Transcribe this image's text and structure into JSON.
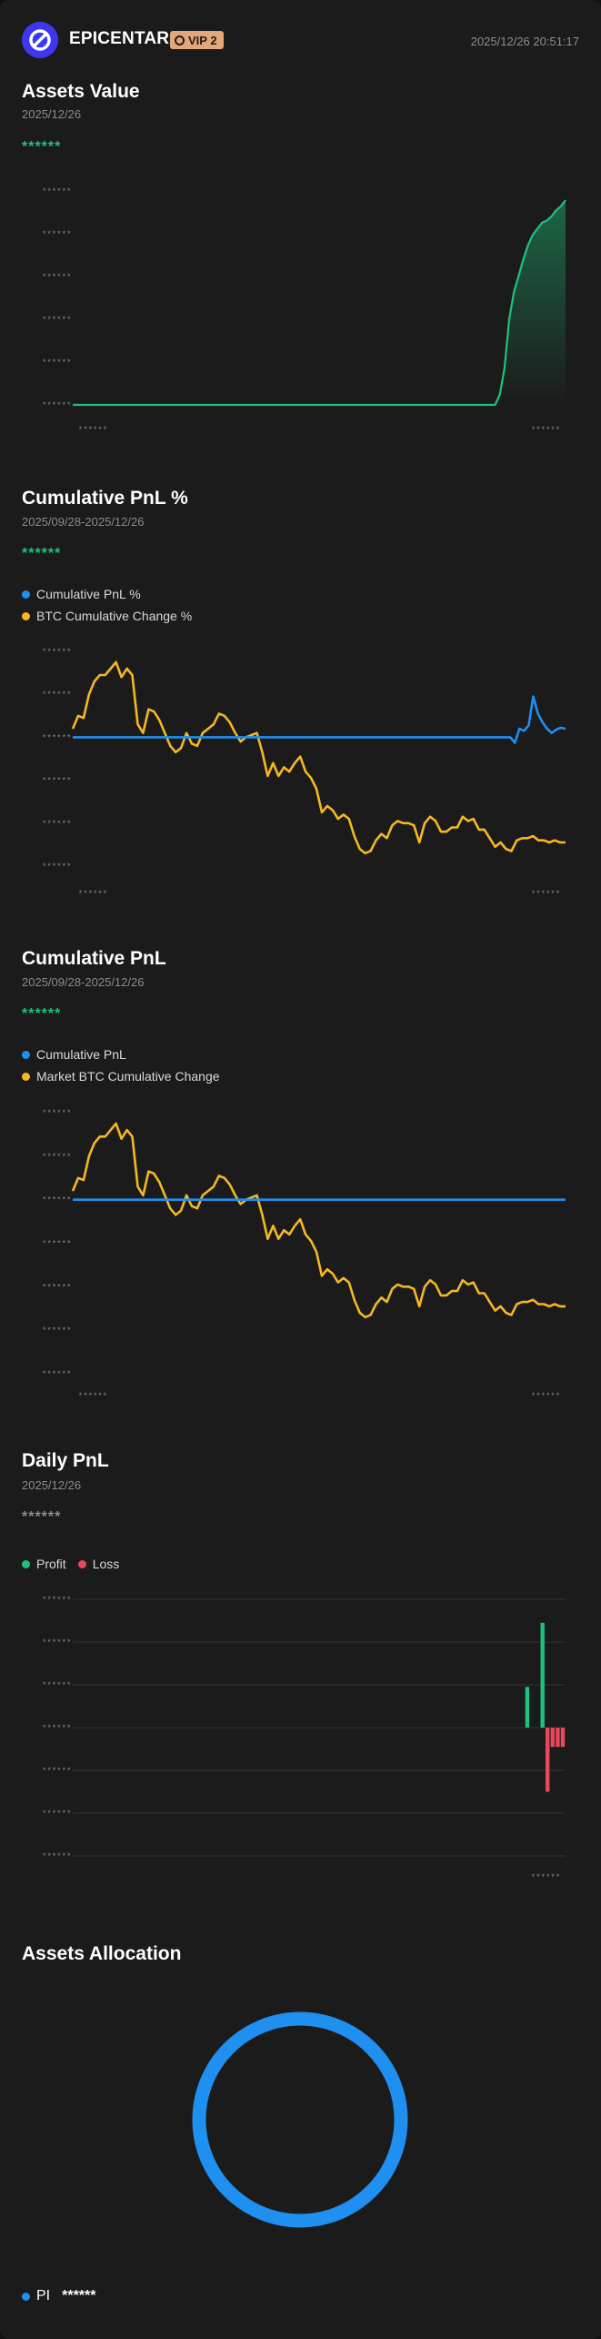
{
  "header": {
    "brand": "EPICENTAR",
    "vip": "VIP 2",
    "timestamp": "2025/12/26 20:51:17",
    "icons": {
      "logo": "no-sign-logo-icon",
      "vip": "vip-badge-icon"
    }
  },
  "colors": {
    "green": "#1fc27a",
    "blue": "#1f8ff0",
    "yellow": "#f5b723",
    "red": "#e8485c",
    "card": "#1b1b1b"
  },
  "assets_value": {
    "title": "Assets Value",
    "date": "2025/12/26",
    "value": "******"
  },
  "cum_pnl_pct": {
    "title": "Cumulative PnL %",
    "range": "2025/09/28-2025/12/26",
    "value": "******",
    "legend": [
      "Cumulative PnL %",
      "BTC Cumulative Change %"
    ]
  },
  "cum_pnl": {
    "title": "Cumulative PnL",
    "range": "2025/09/28-2025/12/26",
    "value": "******",
    "legend": [
      "Cumulative PnL",
      "Market BTC Cumulative Change"
    ]
  },
  "daily_pnl": {
    "title": "Daily PnL",
    "date": "2025/12/26",
    "value": "******",
    "legend": [
      "Profit",
      "Loss"
    ]
  },
  "allocation": {
    "title": "Assets Allocation",
    "items": [
      {
        "label": "PI",
        "value": "******"
      }
    ]
  },
  "mask": "******",
  "chart_data": [
    {
      "type": "area",
      "title": "Assets Value",
      "y_tick_labels": [
        "******",
        "******",
        "******",
        "******",
        "******",
        "******"
      ],
      "x_tick_labels": [
        "******",
        "******"
      ],
      "series": [
        {
          "values": [
            0,
            0,
            0,
            0,
            0,
            0,
            0,
            0,
            0,
            0,
            0,
            0,
            0,
            0,
            0,
            0,
            0,
            0,
            0,
            0,
            0,
            0,
            0,
            0,
            0,
            0,
            0,
            0,
            0,
            0,
            0,
            0,
            0,
            0,
            0,
            0,
            0,
            0,
            0,
            0,
            0,
            0,
            0,
            0,
            0,
            0,
            0,
            0,
            0,
            0,
            0,
            0,
            0,
            0,
            0,
            0,
            0,
            0,
            0,
            0,
            0,
            0,
            0,
            0,
            0,
            0,
            0,
            0,
            0,
            0,
            0,
            0,
            0,
            0,
            0,
            0,
            0,
            0,
            0,
            0,
            0,
            0,
            0,
            0,
            0,
            0,
            0,
            0,
            0,
            0,
            0,
            0.05,
            0.18,
            0.42,
            0.55,
            0.63,
            0.71,
            0.78,
            0.83,
            0.86,
            0.89,
            0.9,
            0.92,
            0.95,
            0.97,
            1.0
          ]
        }
      ],
      "ylim": [
        0,
        1
      ]
    },
    {
      "type": "line",
      "title": "Cumulative PnL %",
      "y_tick_labels": [
        "******",
        "******",
        "******",
        "******",
        "******",
        "******"
      ],
      "x_tick_labels": [
        "******",
        "******"
      ],
      "series": [
        {
          "name": "Cumulative PnL %",
          "values": [
            0,
            0,
            0,
            0,
            0,
            0,
            0,
            0,
            0,
            0,
            0,
            0,
            0,
            0,
            0,
            0,
            0,
            0,
            0,
            0,
            0,
            0,
            0,
            0,
            0,
            0,
            0,
            0,
            0,
            0,
            0,
            0,
            0,
            0,
            0,
            0,
            0,
            0,
            0,
            0,
            0,
            0,
            0,
            0,
            0,
            0,
            0,
            0,
            0,
            0,
            0,
            0,
            0,
            0,
            0,
            0,
            0,
            0,
            0,
            0,
            0,
            0,
            0,
            0,
            0,
            0,
            0,
            0,
            0,
            0,
            0,
            0,
            0,
            0,
            0,
            0,
            0,
            0,
            0,
            0,
            0,
            0,
            0,
            0,
            0,
            0,
            0,
            0,
            0,
            0,
            0,
            0,
            0,
            0,
            0,
            0,
            -0.13,
            0.2,
            0.15,
            0.28,
            0.95,
            0.55,
            0.35,
            0.2,
            0.1,
            0.18,
            0.22,
            0.2
          ]
        },
        {
          "name": "BTC Cumulative Change %",
          "values": [
            0.2,
            0.5,
            0.45,
            1.0,
            1.3,
            1.45,
            1.45,
            1.6,
            1.75,
            1.4,
            1.6,
            1.45,
            0.3,
            0.1,
            0.65,
            0.6,
            0.4,
            0.1,
            -0.2,
            -0.35,
            -0.25,
            0.1,
            -0.15,
            -0.2,
            0.1,
            0.2,
            0.3,
            0.55,
            0.5,
            0.35,
            0.1,
            -0.1,
            0,
            0.05,
            0.1,
            -0.35,
            -0.9,
            -0.6,
            -0.9,
            -0.7,
            -0.8,
            -0.6,
            -0.45,
            -0.8,
            -0.95,
            -1.2,
            -1.75,
            -1.6,
            -1.7,
            -1.9,
            -1.8,
            -1.9,
            -2.3,
            -2.6,
            -2.7,
            -2.65,
            -2.4,
            -2.25,
            -2.35,
            -2.05,
            -1.95,
            -2.0,
            -2.0,
            -2.05,
            -2.45,
            -2.0,
            -1.85,
            -1.95,
            -2.2,
            -2.2,
            -2.1,
            -2.1,
            -1.85,
            -1.95,
            -1.9,
            -2.15,
            -2.15,
            -2.35,
            -2.55,
            -2.45,
            -2.6,
            -2.65,
            -2.4,
            -2.35,
            -2.35,
            -2.3,
            -2.4,
            -2.4,
            -2.45,
            -2.4,
            -2.45,
            -2.45
          ]
        }
      ]
    },
    {
      "type": "line",
      "title": "Cumulative PnL",
      "y_tick_labels": [
        "******",
        "******",
        "******",
        "******",
        "******",
        "******",
        "******"
      ],
      "x_tick_labels": [
        "******",
        "******"
      ],
      "series": [
        {
          "name": "Cumulative PnL",
          "values": [
            0,
            0,
            0,
            0,
            0,
            0,
            0,
            0,
            0,
            0,
            0,
            0,
            0,
            0,
            0,
            0,
            0,
            0,
            0,
            0,
            0,
            0,
            0,
            0,
            0,
            0,
            0,
            0,
            0,
            0,
            0,
            0,
            0,
            0,
            0,
            0,
            0,
            0,
            0,
            0,
            0,
            0,
            0,
            0,
            0,
            0,
            0,
            0,
            0,
            0,
            0,
            0,
            0,
            0,
            0,
            0,
            0,
            0,
            0,
            0,
            0,
            0,
            0,
            0,
            0,
            0,
            0,
            0,
            0,
            0,
            0,
            0,
            0,
            0,
            0,
            0,
            0,
            0,
            0,
            0,
            0,
            0,
            0,
            0,
            0,
            0,
            0,
            0,
            0,
            0,
            0,
            0
          ]
        },
        {
          "name": "Market BTC Cumulative Change",
          "values": [
            0.2,
            0.5,
            0.45,
            1.0,
            1.3,
            1.45,
            1.45,
            1.6,
            1.75,
            1.4,
            1.6,
            1.45,
            0.3,
            0.1,
            0.65,
            0.6,
            0.4,
            0.1,
            -0.2,
            -0.35,
            -0.25,
            0.1,
            -0.15,
            -0.2,
            0.1,
            0.2,
            0.3,
            0.55,
            0.5,
            0.35,
            0.1,
            -0.1,
            0,
            0.05,
            0.1,
            -0.35,
            -0.9,
            -0.6,
            -0.9,
            -0.7,
            -0.8,
            -0.6,
            -0.45,
            -0.8,
            -0.95,
            -1.2,
            -1.75,
            -1.6,
            -1.7,
            -1.9,
            -1.8,
            -1.9,
            -2.3,
            -2.6,
            -2.7,
            -2.65,
            -2.4,
            -2.25,
            -2.35,
            -2.05,
            -1.95,
            -2.0,
            -2.0,
            -2.05,
            -2.45,
            -2.0,
            -1.85,
            -1.95,
            -2.2,
            -2.2,
            -2.1,
            -2.1,
            -1.85,
            -1.95,
            -1.9,
            -2.15,
            -2.15,
            -2.35,
            -2.55,
            -2.45,
            -2.6,
            -2.65,
            -2.4,
            -2.35,
            -2.35,
            -2.3,
            -2.4,
            -2.4,
            -2.45,
            -2.4,
            -2.45,
            -2.45
          ]
        }
      ]
    },
    {
      "type": "bar",
      "title": "Daily PnL",
      "y_tick_labels": [
        "******",
        "******",
        "******",
        "******",
        "******",
        "******",
        "******"
      ],
      "x_tick_labels": [
        "******"
      ],
      "series": [
        {
          "values": [
            0,
            0,
            0,
            0,
            0,
            0,
            0,
            0,
            0,
            0,
            0,
            0,
            0,
            0,
            0,
            0,
            0,
            0,
            0,
            0,
            0,
            0,
            0,
            0,
            0,
            0,
            0,
            0,
            0,
            0,
            0,
            0,
            0,
            0,
            0,
            0,
            0,
            0,
            0,
            0,
            0,
            0,
            0,
            0,
            0,
            0,
            0,
            0,
            0,
            0,
            0,
            0,
            0,
            0,
            0,
            0,
            0,
            0,
            0,
            0,
            0,
            0,
            0,
            0,
            0,
            0,
            0,
            0,
            0,
            0,
            0,
            0,
            0,
            0,
            0,
            0,
            0,
            0,
            0,
            0,
            0,
            0,
            0,
            0,
            0,
            0,
            0,
            0,
            0,
            0.95,
            0,
            0,
            2.45,
            -1.5,
            -0.45,
            -0.45,
            -0.45
          ]
        }
      ],
      "ylim": [
        -3,
        3
      ]
    },
    {
      "type": "pie",
      "title": "Assets Allocation",
      "categories": [
        "PI"
      ],
      "values": [
        100
      ]
    }
  ]
}
